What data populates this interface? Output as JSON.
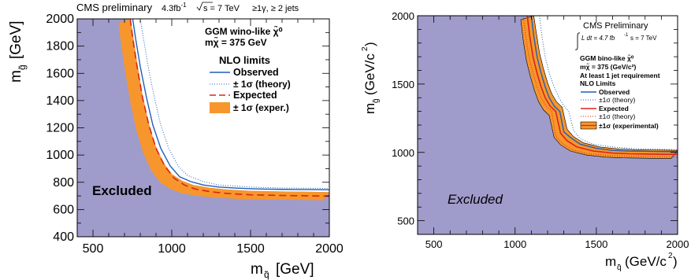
{
  "chart_data": [
    {
      "type": "area",
      "title": "CMS preliminary",
      "header_lumi": "4.3fb",
      "header_lumi_exp": "-1",
      "header_energy": "s = 7 TeV",
      "header_selection": "≥1γ, ≥ 2 jets",
      "xlabel": "m",
      "xlabel_sub": "q̃",
      "xlabel_unit": "[GeV]",
      "ylabel": "m",
      "ylabel_sub": "g̃",
      "ylabel_unit": "[GeV]",
      "xlim": [
        400,
        2000
      ],
      "ylim": [
        400,
        2000
      ],
      "xticks": [
        "500",
        "1000",
        "1500",
        "2000"
      ],
      "yticks": [
        "400",
        "600",
        "800",
        "1000",
        "1200",
        "1400",
        "1600",
        "1800",
        "2000"
      ],
      "model_line1": "GGM wino-like χ̃⁰",
      "model_line2": "mχ̃ = 375 GeV",
      "legend_title": "NLO limits",
      "excluded_label": "Excluded",
      "colors": {
        "excluded": "#9f9ccb",
        "band": "#f7962c",
        "observed": "#1f5fb8",
        "expected": "#d8261b",
        "theory": "#1f5fb8"
      },
      "series": [
        {
          "name": "Observed",
          "style": "solid",
          "x": [
            752,
            770,
            800,
            840,
            880,
            930,
            990,
            1050,
            1120,
            1200,
            1300,
            1400,
            1500,
            1600,
            1700,
            1800,
            1900,
            2000
          ],
          "y": [
            2000,
            1860,
            1650,
            1420,
            1220,
            1050,
            920,
            840,
            805,
            780,
            765,
            758,
            753,
            750,
            748,
            747,
            746,
            745
          ]
        },
        {
          "name": "± 1σ (theory)",
          "style": "dotted",
          "x": [
            800,
            820,
            850,
            890,
            930,
            980,
            1040,
            1100,
            1200,
            1300,
            1500,
            1700,
            1900,
            2000
          ],
          "y": [
            2000,
            1860,
            1650,
            1420,
            1220,
            1050,
            920,
            850,
            805,
            780,
            765,
            758,
            756,
            755
          ]
        },
        {
          "name": "Expected",
          "style": "dashed",
          "x": [
            737,
            752,
            780,
            815,
            855,
            900,
            955,
            1015,
            1080,
            1150,
            1250,
            1350,
            1500,
            1700,
            1900,
            2000
          ],
          "y": [
            2000,
            1860,
            1650,
            1420,
            1220,
            1050,
            920,
            830,
            780,
            750,
            730,
            718,
            708,
            703,
            700,
            698
          ]
        },
        {
          "name": "± 1σ (exper.)",
          "style": "band",
          "x": [
            700,
            715,
            742,
            775,
            812,
            855,
            906,
            963,
            1030,
            1100,
            1200,
            1300,
            1450,
            1650,
            1850,
            2000
          ],
          "y": [
            2000,
            1860,
            1650,
            1420,
            1220,
            1050,
            920,
            830,
            780,
            750,
            730,
            718,
            708,
            703,
            700,
            698
          ],
          "y_lo_offset_x": -38,
          "y_hi_offset_x": 38,
          "y_lo_offset_y": -30,
          "y_hi_offset_y": 30
        }
      ]
    },
    {
      "type": "area",
      "title": "CMS Preliminary",
      "header_lumi": "L dt = 4.7 fb",
      "header_lumi_exp": "-1",
      "header_energy": "s = 7 TeV",
      "xlabel": "m",
      "xlabel_sub": "q̃",
      "xlabel_unit": "(GeV/c",
      "xlabel_unit_exp": "2",
      "xlabel_unit_end": ")",
      "ylabel": "m",
      "ylabel_sub": "g̃",
      "ylabel_unit": "(GeV/c",
      "ylabel_unit_exp": "2",
      "ylabel_unit_end": ")",
      "xlim": [
        400,
        2000
      ],
      "ylim": [
        400,
        2000
      ],
      "xticks": [
        "500",
        "1000",
        "1500",
        "2000"
      ],
      "yticks": [
        "500",
        "1000",
        "1500",
        "2000"
      ],
      "model_line1": "GGM bino-like χ̃⁰",
      "model_line2": "mχ̃ = 375 (GeV/c²)",
      "selection": "At least 1 jet requirement",
      "legend_title": "NLO Limits",
      "excluded_label": "Excluded",
      "colors": {
        "excluded": "#9f9ccb",
        "band": "#f7962c",
        "observed": "#1f5fb8",
        "expected": "#d8261b",
        "theory_obs": "#1f5fb8",
        "theory_exp": "#d8261b"
      },
      "series": [
        {
          "name": "Observed",
          "style": "solid",
          "x": [
            1100,
            1115,
            1135,
            1160,
            1185,
            1210,
            1240,
            1275,
            1300,
            1340,
            1400,
            1500,
            1600,
            1700,
            1800,
            1900,
            2000
          ],
          "y": [
            2000,
            1850,
            1700,
            1580,
            1480,
            1400,
            1340,
            1300,
            1150,
            1110,
            1060,
            1030,
            1015,
            1010,
            1008,
            1006,
            1005
          ]
        },
        {
          "name": "±1σ (theory)",
          "style": "dotted",
          "x": [
            1150,
            1165,
            1185,
            1210,
            1240,
            1270,
            1300,
            1330,
            1360,
            1400,
            1480,
            1600,
            1700,
            1800,
            1900,
            2000
          ],
          "y": [
            2000,
            1850,
            1700,
            1580,
            1480,
            1400,
            1340,
            1300,
            1160,
            1100,
            1060,
            1040,
            1030,
            1025,
            1022,
            1020
          ]
        },
        {
          "name": "Expected",
          "style": "solid",
          "x": [
            1075,
            1090,
            1110,
            1135,
            1160,
            1185,
            1215,
            1250,
            1280,
            1320,
            1380,
            1480,
            1600,
            1700,
            1800,
            1900,
            2000
          ],
          "y": [
            2000,
            1850,
            1700,
            1580,
            1480,
            1400,
            1340,
            1300,
            1140,
            1085,
            1040,
            1010,
            995,
            990,
            988,
            986,
            985
          ]
        },
        {
          "name": "±1σ (theory)",
          "style": "dotted",
          "x": [
            1050,
            1065,
            1085,
            1110,
            1135,
            1160,
            1190,
            1225,
            1250,
            1290,
            1350,
            1450,
            1600,
            1800,
            2000
          ],
          "y": [
            2000,
            1850,
            1700,
            1580,
            1480,
            1400,
            1340,
            1300,
            1120,
            1065,
            1020,
            990,
            975,
            968,
            965
          ]
        },
        {
          "name": "±1σ (experimental)",
          "style": "band",
          "x": [
            1075,
            1090,
            1110,
            1135,
            1160,
            1185,
            1215,
            1250,
            1280,
            1320,
            1380,
            1480,
            1600,
            1700,
            1800,
            1900,
            2000
          ],
          "y": [
            2000,
            1850,
            1700,
            1580,
            1480,
            1400,
            1340,
            1300,
            1140,
            1085,
            1040,
            1010,
            995,
            990,
            988,
            986,
            985
          ],
          "y_lo_offset_x": -40,
          "y_hi_offset_x": 40,
          "y_lo_offset_y": -30,
          "y_hi_offset_y": 30
        }
      ]
    }
  ]
}
